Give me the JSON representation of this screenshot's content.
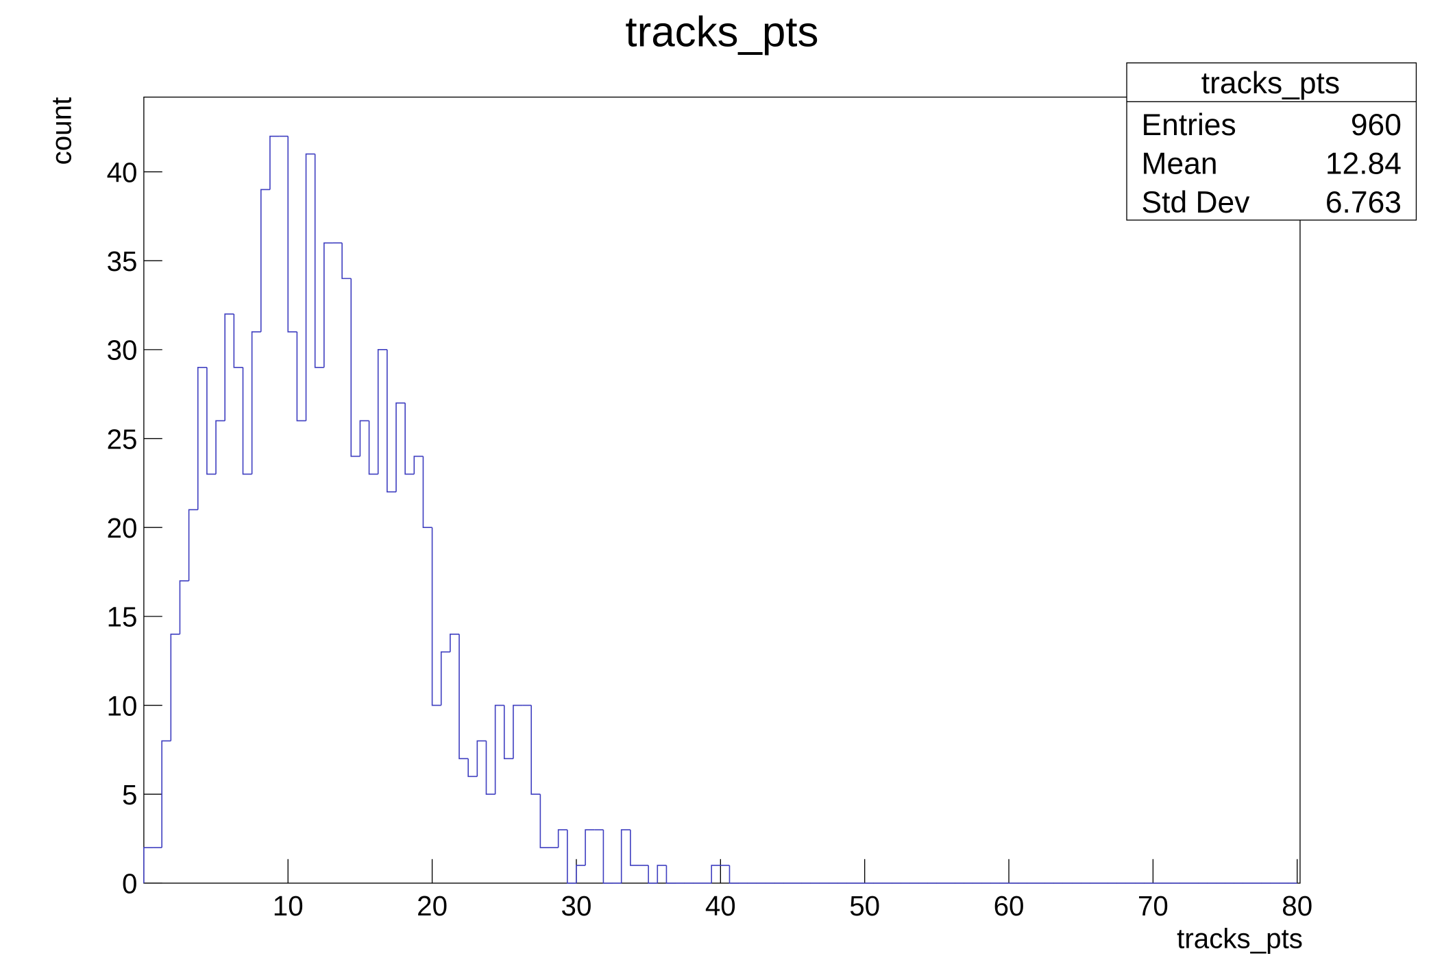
{
  "chart_data": {
    "type": "histogram",
    "title": "tracks_pts",
    "x_label": "tracks_pts",
    "y_label": "count",
    "color": "#3f3fc0",
    "bins": [
      0,
      0.625,
      1.25,
      1.875,
      2.5,
      3.125,
      3.75,
      4.375,
      5,
      5.625,
      6.25,
      6.875,
      7.5,
      8.125,
      8.75,
      9.375,
      10,
      10.625,
      11.25,
      11.875,
      12.5,
      13.125,
      13.75,
      14.375,
      15,
      15.625,
      16.25,
      16.875,
      17.5,
      18.125,
      18.75,
      19.375,
      20,
      20.625,
      21.25,
      21.875,
      22.5,
      23.125,
      23.75,
      24.375,
      25,
      25.625,
      26.25,
      26.875,
      27.5,
      28.125,
      28.75,
      29.375,
      30,
      30.625,
      31.25,
      31.875,
      32.5,
      33.125,
      33.75,
      34.375,
      35,
      35.625,
      36.25,
      36.875,
      37.5,
      38.125,
      38.75,
      39.375,
      40,
      40.625,
      41.25,
      41.875,
      42.5,
      43.125,
      43.75,
      44.375,
      45,
      45.625,
      46.25,
      46.875,
      47.5,
      48.125,
      48.75,
      49.375,
      50,
      50.625,
      51.25,
      51.875,
      52.5,
      53.125,
      53.75,
      54.375,
      55,
      55.625,
      56.25,
      56.875,
      57.5,
      58.125,
      58.75,
      59.375,
      60,
      60.625,
      61.25,
      61.875,
      62.5,
      63.125,
      63.75,
      64.375,
      65,
      65.625,
      66.25,
      66.875,
      67.5,
      68.125,
      68.75,
      69.375,
      70,
      70.625,
      71.25,
      71.875,
      72.5,
      73.125,
      73.75,
      74.375,
      75,
      75.625,
      76.25,
      76.875,
      77.5,
      78.125,
      78.75,
      79.375,
      80
    ],
    "values": [
      2,
      2,
      8,
      14,
      17,
      21,
      29,
      23,
      26,
      32,
      29,
      23,
      31,
      39,
      42,
      42,
      31,
      26,
      41,
      29,
      36,
      36,
      34,
      24,
      26,
      23,
      30,
      22,
      27,
      23,
      24,
      20,
      10,
      13,
      14,
      7,
      6,
      8,
      5,
      10,
      7,
      10,
      10,
      5,
      2,
      2,
      3,
      0,
      1,
      3,
      3,
      0,
      0,
      3,
      1,
      1,
      0,
      1,
      0,
      0,
      0,
      0,
      0,
      1,
      1,
      0,
      0,
      0,
      0,
      0,
      0,
      0,
      0,
      0,
      0,
      0,
      0,
      0,
      0,
      0,
      0,
      0,
      0,
      0,
      0,
      0,
      0,
      0,
      0,
      0,
      0,
      0,
      0,
      0,
      0,
      0,
      0,
      0,
      0,
      0,
      0,
      0,
      0,
      0,
      0,
      0,
      0,
      0,
      0,
      0,
      0,
      0,
      0,
      0,
      0,
      0,
      0,
      0,
      0,
      0,
      0,
      0,
      0,
      0,
      0,
      0,
      0,
      0
    ],
    "xlim": [
      0,
      80.2
    ],
    "ylim": [
      0,
      44.2
    ],
    "xticks": [
      10,
      20,
      30,
      40,
      50,
      60,
      70,
      80
    ],
    "yticks": [
      0,
      5,
      10,
      15,
      20,
      25,
      30,
      35,
      40
    ],
    "stats": {
      "title": "tracks_pts",
      "rows": [
        {
          "label": "Entries",
          "value": 960
        },
        {
          "label": "Mean",
          "value": 12.84
        },
        {
          "label": "Std Dev",
          "value": 6.763
        }
      ]
    }
  }
}
